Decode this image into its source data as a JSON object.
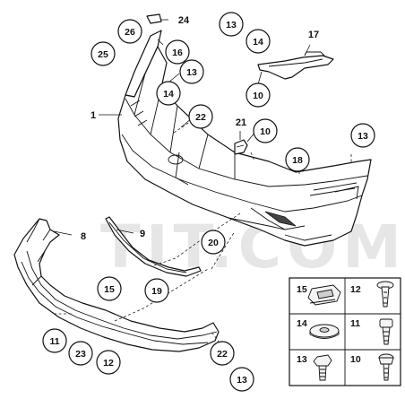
{
  "watermark": "TIT.COM",
  "callouts": [
    {
      "id": "c24",
      "label": "24"
    },
    {
      "id": "c26",
      "label": "26"
    },
    {
      "id": "c25",
      "label": "25"
    },
    {
      "id": "c16",
      "label": "16"
    },
    {
      "id": "c13a",
      "label": "13"
    },
    {
      "id": "c14a",
      "label": "14"
    },
    {
      "id": "c17",
      "label": "17"
    },
    {
      "id": "c13b",
      "label": "13"
    },
    {
      "id": "c14b",
      "label": "14"
    },
    {
      "id": "c10a",
      "label": "10"
    },
    {
      "id": "c1",
      "label": "1"
    },
    {
      "id": "c22a",
      "label": "22"
    },
    {
      "id": "c21",
      "label": "21"
    },
    {
      "id": "c10b",
      "label": "10"
    },
    {
      "id": "c13c",
      "label": "13"
    },
    {
      "id": "c18",
      "label": "18"
    },
    {
      "id": "c8",
      "label": "8"
    },
    {
      "id": "c9",
      "label": "9"
    },
    {
      "id": "c20",
      "label": "20"
    },
    {
      "id": "c15",
      "label": "15"
    },
    {
      "id": "c19",
      "label": "19"
    },
    {
      "id": "c11",
      "label": "11"
    },
    {
      "id": "c23",
      "label": "23"
    },
    {
      "id": "c12",
      "label": "12"
    },
    {
      "id": "c22b",
      "label": "22"
    },
    {
      "id": "c13d",
      "label": "13"
    }
  ],
  "legend": [
    {
      "label": "15",
      "icon": "spring-nut-icon"
    },
    {
      "label": "12",
      "icon": "expanding-rivet-icon"
    },
    {
      "label": "14",
      "icon": "flat-washer-icon"
    },
    {
      "label": "11",
      "icon": "clip-screw-icon"
    },
    {
      "label": "13",
      "icon": "hex-bolt-icon"
    },
    {
      "label": "10",
      "icon": "torx-screw-icon"
    }
  ]
}
